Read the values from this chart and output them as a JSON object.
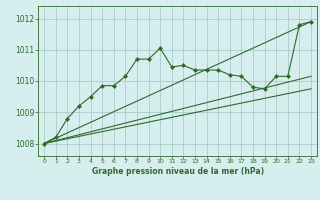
{
  "title": "Graphe pression niveau de la mer (hPa)",
  "background_color": "#d6eeee",
  "grid_color": "#aacccc",
  "line_color": "#2d6a2d",
  "marker_color": "#2d6a2d",
  "xlim": [
    -0.5,
    23.5
  ],
  "ylim": [
    1007.6,
    1012.4
  ],
  "yticks": [
    1008,
    1009,
    1010,
    1011,
    1012
  ],
  "xticks": [
    0,
    1,
    2,
    3,
    4,
    5,
    6,
    7,
    8,
    9,
    10,
    11,
    12,
    13,
    14,
    15,
    16,
    17,
    18,
    19,
    20,
    21,
    22,
    23
  ],
  "series1_x": [
    0,
    1,
    2,
    3,
    4,
    5,
    6,
    7,
    8,
    9,
    10,
    11,
    12,
    13,
    14,
    15,
    16,
    17,
    18,
    19,
    20,
    21,
    22,
    23
  ],
  "series1_y": [
    1008.0,
    1008.2,
    1008.8,
    1009.2,
    1009.5,
    1009.85,
    1009.85,
    1010.15,
    1010.7,
    1010.7,
    1011.05,
    1010.45,
    1010.5,
    1010.35,
    1010.35,
    1010.35,
    1010.2,
    1010.15,
    1009.8,
    1009.75,
    1010.15,
    1010.15,
    1011.8,
    1011.9
  ],
  "series2_x": [
    0,
    23
  ],
  "series2_y": [
    1008.0,
    1011.9
  ],
  "series3_x": [
    0,
    23
  ],
  "series3_y": [
    1008.0,
    1010.15
  ],
  "series4_x": [
    0,
    23
  ],
  "series4_y": [
    1008.0,
    1009.75
  ]
}
